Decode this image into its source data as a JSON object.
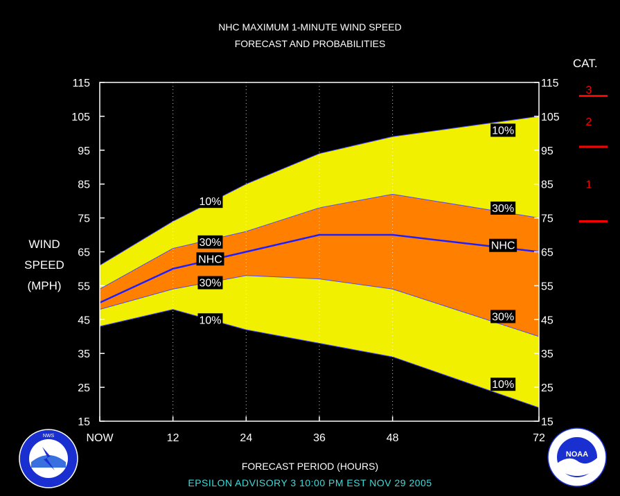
{
  "title_line1": "NHC MAXIMUM 1-MINUTE WIND SPEED",
  "title_line2": "FORECAST AND PROBABILITIES",
  "ylabel_lines": [
    "WIND",
    "SPEED",
    "(MPH)"
  ],
  "xlabel": "FORECAST PERIOD (HOURS)",
  "advisory": "EPSILON   ADVISORY  3  10:00  PM  EST  NOV  29  2005",
  "category_panel": {
    "title": "CAT.",
    "labels": [
      "3",
      "2",
      "1"
    ],
    "color": "#ff0000"
  },
  "colors": {
    "band_10": "#f0f000",
    "band_30": "#ff8000",
    "nhc_line": "#1e1eff",
    "background": "#000000",
    "frame": "#ffffff"
  },
  "chart_data": {
    "type": "area",
    "x": [
      0,
      12,
      24,
      36,
      48,
      72
    ],
    "xticklabels": [
      "NOW",
      "12",
      "24",
      "36",
      "48",
      "72"
    ],
    "xlim": [
      0,
      72
    ],
    "ylim": [
      15,
      115
    ],
    "yticks": [
      15,
      25,
      35,
      45,
      55,
      65,
      75,
      85,
      95,
      105,
      115
    ],
    "grid": "vertical dotted at forecast hours",
    "series": [
      {
        "name": "10%",
        "values": [
          61,
          74,
          85,
          94,
          99,
          105
        ]
      },
      {
        "name": "30%",
        "values": [
          54,
          66,
          71,
          78,
          82,
          75
        ]
      },
      {
        "name": "NHC",
        "values": [
          50,
          60,
          65,
          70,
          70,
          65
        ]
      },
      {
        "name": "30%",
        "values": [
          48,
          54,
          58,
          57,
          54,
          40
        ]
      },
      {
        "name": "10%",
        "values": [
          43,
          48,
          42,
          38,
          34,
          19
        ]
      }
    ],
    "labels": [
      {
        "text": "10%",
        "x": 18,
        "y": 80
      },
      {
        "text": "30%",
        "x": 18,
        "y": 68
      },
      {
        "text": "NHC",
        "x": 18,
        "y": 63
      },
      {
        "text": "30%",
        "x": 18,
        "y": 56
      },
      {
        "text": "10%",
        "x": 18,
        "y": 45
      },
      {
        "text": "10%",
        "x": 66,
        "y": 101
      },
      {
        "text": "30%",
        "x": 66,
        "y": 78
      },
      {
        "text": "NHC",
        "x": 66,
        "y": 67
      },
      {
        "text": "30%",
        "x": 66,
        "y": 46
      },
      {
        "text": "10%",
        "x": 66,
        "y": 26
      }
    ],
    "category_thresholds": [
      74,
      96,
      111
    ]
  },
  "logos": {
    "left": {
      "name": "National Weather Service",
      "text": "NATIONAL WEATHER SERVICE"
    },
    "right": {
      "name": "NOAA",
      "text": "NOAA"
    }
  }
}
